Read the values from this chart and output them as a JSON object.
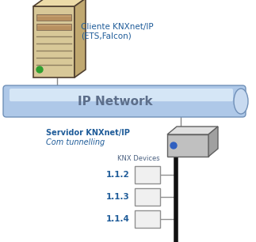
{
  "bg_color": "#ffffff",
  "pipe_label": "IP Network",
  "pipe_label_color": "#5c6e8a",
  "pipe_label_fontsize": 11,
  "pipe_body_color": "#aec8e8",
  "pipe_highlight_color": "#daeaf8",
  "pipe_edge_color": "#7090b8",
  "pipe_cap_color": "#c8daf0",
  "server_label": "Cliente KNXnet/IP\n(ETS,Falcon)",
  "server_label_color": "#1f5c99",
  "server_label_fontsize": 7.5,
  "knx_server_label1": "Servidor KNXnet/IP",
  "knx_server_label2": "Com tunnelling",
  "knx_server_label_color": "#1f5c99",
  "knx_server_label_fontsize": 7.0,
  "knx_devices_label": "KNX Devices",
  "knx_devices_label_color": "#4a6080",
  "knx_devices_label_fontsize": 6.0,
  "device_labels": [
    "1.1.2",
    "1.1.3",
    "1.1.4"
  ],
  "device_label_color": "#1f5c99",
  "device_label_fontsize": 7.5,
  "line_color": "#888888",
  "bus_color": "#111111"
}
